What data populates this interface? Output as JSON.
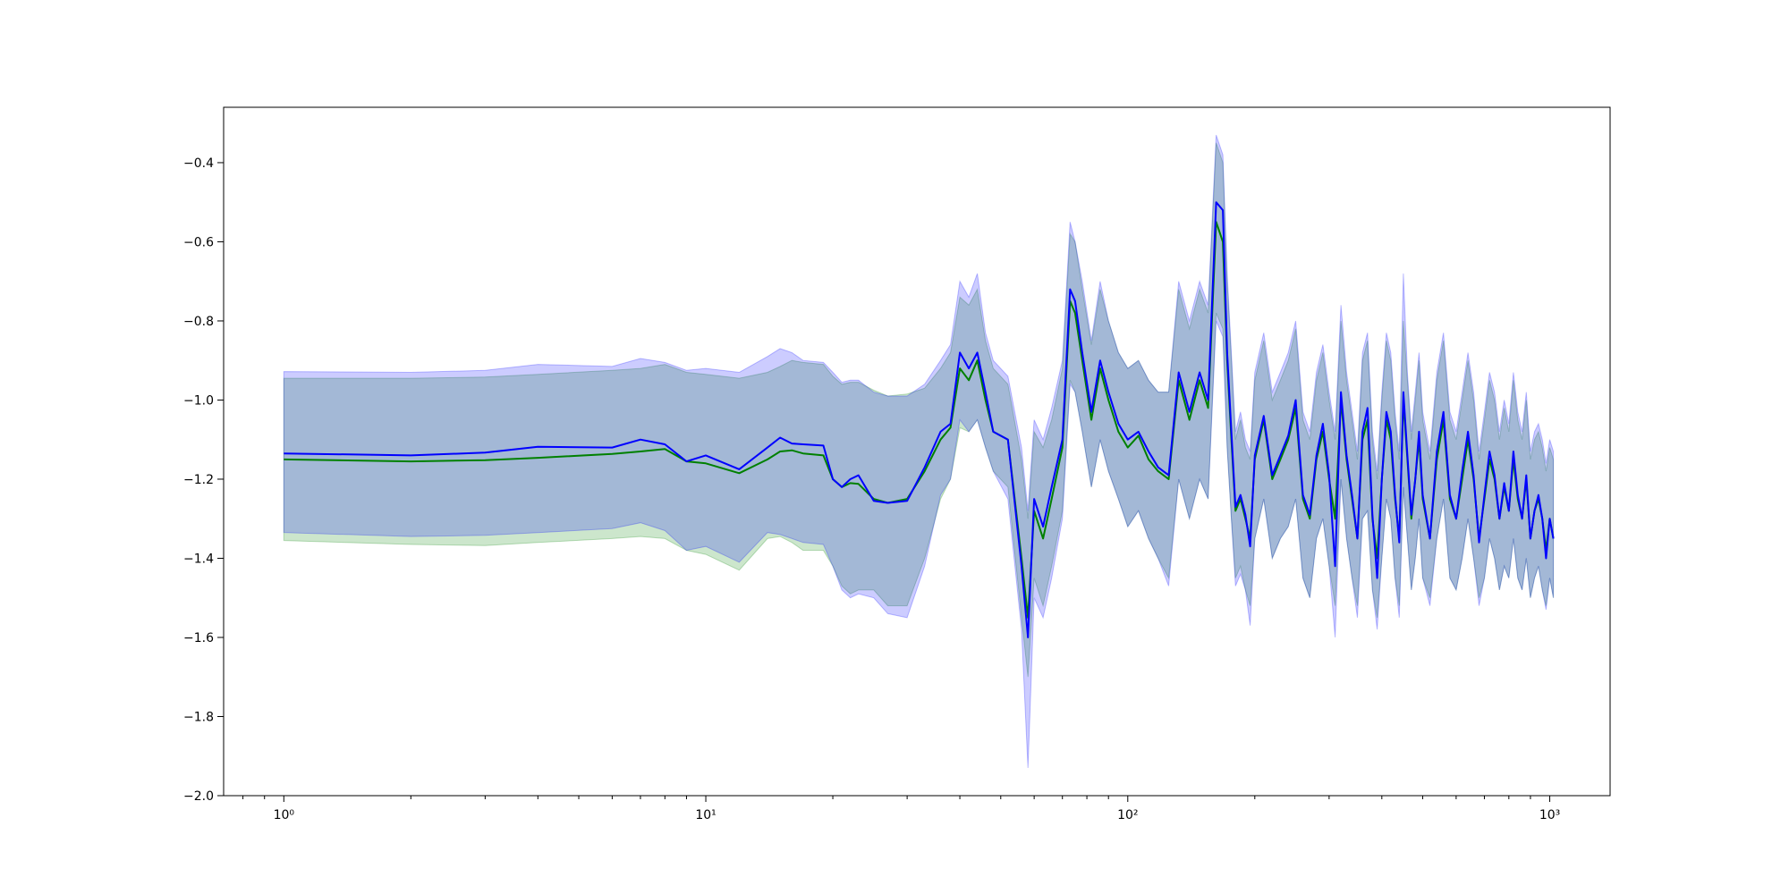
{
  "chart_data": {
    "type": "line",
    "title": "",
    "xlabel": "",
    "ylabel": "",
    "x_scale": "log",
    "xlim": [
      0.72,
      1390
    ],
    "ylim": [
      -2.0,
      -0.26
    ],
    "grid": false,
    "legend": "none",
    "x_ticks": [
      {
        "value": 1,
        "label": "10⁰"
      },
      {
        "value": 10,
        "label": "10¹"
      },
      {
        "value": 100,
        "label": "10²"
      },
      {
        "value": 1000,
        "label": "10³"
      }
    ],
    "y_ticks": [
      {
        "value": -0.4,
        "label": "−0.4"
      },
      {
        "value": -0.6,
        "label": "−0.6"
      },
      {
        "value": -0.8,
        "label": "−0.8"
      },
      {
        "value": -1.0,
        "label": "−1.0"
      },
      {
        "value": -1.2,
        "label": "−1.2"
      },
      {
        "value": -1.4,
        "label": "−1.4"
      },
      {
        "value": -1.6,
        "label": "−1.6"
      },
      {
        "value": -1.8,
        "label": "−1.8"
      },
      {
        "value": -2.0,
        "label": "−2.0"
      }
    ],
    "x": [
      1,
      2,
      3,
      4,
      6,
      7,
      8,
      9,
      10,
      12,
      14,
      15,
      16,
      17,
      19,
      20,
      21,
      22,
      23,
      25,
      27,
      30,
      33,
      36,
      38,
      40,
      42,
      44,
      46,
      48,
      52,
      56,
      58,
      60,
      63,
      66,
      70,
      73,
      75,
      78,
      82,
      86,
      90,
      95,
      100,
      106,
      112,
      118,
      125,
      132,
      140,
      148,
      155,
      162,
      168,
      172,
      176,
      180,
      185,
      190,
      195,
      200,
      210,
      220,
      230,
      240,
      250,
      260,
      270,
      280,
      290,
      300,
      310,
      320,
      330,
      340,
      350,
      360,
      370,
      380,
      390,
      400,
      410,
      420,
      430,
      440,
      450,
      460,
      470,
      480,
      490,
      500,
      520,
      540,
      560,
      580,
      600,
      620,
      640,
      660,
      680,
      700,
      720,
      740,
      760,
      780,
      800,
      820,
      840,
      860,
      880,
      900,
      920,
      940,
      960,
      980,
      1000,
      1020
    ],
    "series": [
      {
        "color": "#008000",
        "band_color": "#008000",
        "mean": [
          -1.15,
          -1.155,
          -1.152,
          -1.146,
          -1.136,
          -1.13,
          -1.124,
          -1.155,
          -1.16,
          -1.185,
          -1.15,
          -1.13,
          -1.127,
          -1.135,
          -1.14,
          -1.2,
          -1.22,
          -1.21,
          -1.212,
          -1.25,
          -1.26,
          -1.25,
          -1.18,
          -1.1,
          -1.07,
          -0.92,
          -0.95,
          -0.9,
          -1.0,
          -1.08,
          -1.1,
          -1.4,
          -1.55,
          -1.28,
          -1.35,
          -1.25,
          -1.12,
          -0.75,
          -0.78,
          -0.9,
          -1.05,
          -0.92,
          -1.0,
          -1.08,
          -1.12,
          -1.09,
          -1.15,
          -1.18,
          -1.2,
          -0.95,
          -1.05,
          -0.95,
          -1.02,
          -0.55,
          -0.6,
          -0.9,
          -1.1,
          -1.28,
          -1.25,
          -1.3,
          -1.35,
          -1.15,
          -1.05,
          -1.2,
          -1.15,
          -1.1,
          -1.02,
          -1.25,
          -1.3,
          -1.15,
          -1.08,
          -1.2,
          -1.3,
          -1.0,
          -1.15,
          -1.25,
          -1.35,
          -1.1,
          -1.05,
          -1.3,
          -1.4,
          -1.2,
          -1.05,
          -1.1,
          -1.25,
          -1.35,
          -1.0,
          -1.15,
          -1.3,
          -1.2,
          -1.1,
          -1.25,
          -1.35,
          -1.15,
          -1.05,
          -1.25,
          -1.3,
          -1.2,
          -1.1,
          -1.2,
          -1.35,
          -1.25,
          -1.15,
          -1.2,
          -1.3,
          -1.22,
          -1.28,
          -1.15,
          -1.25,
          -1.3,
          -1.2,
          -1.35,
          -1.28,
          -1.25,
          -1.3,
          -1.38,
          -1.3,
          -1.35
        ],
        "lower": [
          -1.355,
          -1.365,
          -1.368,
          -1.36,
          -1.35,
          -1.345,
          -1.35,
          -1.38,
          -1.39,
          -1.43,
          -1.35,
          -1.345,
          -1.36,
          -1.38,
          -1.38,
          -1.42,
          -1.47,
          -1.49,
          -1.48,
          -1.48,
          -1.52,
          -1.52,
          -1.4,
          -1.25,
          -1.2,
          -1.07,
          -1.08,
          -1.05,
          -1.12,
          -1.18,
          -1.22,
          -1.55,
          -1.7,
          -1.45,
          -1.52,
          -1.42,
          -1.28,
          -0.95,
          -0.98,
          -1.08,
          -1.22,
          -1.1,
          -1.18,
          -1.25,
          -1.32,
          -1.28,
          -1.35,
          -1.4,
          -1.45,
          -1.2,
          -1.3,
          -1.2,
          -1.25,
          -0.78,
          -0.82,
          -1.12,
          -1.3,
          -1.45,
          -1.42,
          -1.48,
          -1.52,
          -1.35,
          -1.25,
          -1.4,
          -1.35,
          -1.32,
          -1.25,
          -1.45,
          -1.5,
          -1.35,
          -1.3,
          -1.42,
          -1.52,
          -1.2,
          -1.35,
          -1.45,
          -1.52,
          -1.3,
          -1.28,
          -1.48,
          -1.55,
          -1.4,
          -1.25,
          -1.3,
          -1.45,
          -1.52,
          -1.22,
          -1.35,
          -1.48,
          -1.4,
          -1.3,
          -1.45,
          -1.5,
          -1.35,
          -1.25,
          -1.45,
          -1.48,
          -1.4,
          -1.3,
          -1.4,
          -1.5,
          -1.45,
          -1.35,
          -1.4,
          -1.48,
          -1.42,
          -1.45,
          -1.35,
          -1.45,
          -1.48,
          -1.4,
          -1.5,
          -1.45,
          -1.42,
          -1.48,
          -1.52,
          -1.45,
          -1.5
        ],
        "upper": [
          -0.945,
          -0.945,
          -0.942,
          -0.935,
          -0.925,
          -0.92,
          -0.91,
          -0.93,
          -0.935,
          -0.945,
          -0.93,
          -0.915,
          -0.9,
          -0.905,
          -0.91,
          -0.94,
          -0.96,
          -0.955,
          -0.955,
          -0.975,
          -0.99,
          -0.985,
          -0.97,
          -0.92,
          -0.88,
          -0.74,
          -0.76,
          -0.72,
          -0.85,
          -0.92,
          -0.96,
          -1.15,
          -1.3,
          -1.08,
          -1.12,
          -1.05,
          -0.92,
          -0.58,
          -0.6,
          -0.72,
          -0.86,
          -0.72,
          -0.8,
          -0.88,
          -0.92,
          -0.9,
          -0.95,
          -0.98,
          -0.98,
          -0.72,
          -0.82,
          -0.72,
          -0.78,
          -0.35,
          -0.4,
          -0.7,
          -0.9,
          -1.1,
          -1.05,
          -1.12,
          -1.15,
          -0.95,
          -0.85,
          -1.0,
          -0.95,
          -0.9,
          -0.82,
          -1.05,
          -1.1,
          -0.95,
          -0.88,
          -1.0,
          -1.1,
          -0.8,
          -0.95,
          -1.05,
          -1.15,
          -0.9,
          -0.85,
          -1.1,
          -1.2,
          -1.0,
          -0.85,
          -0.9,
          -1.05,
          -1.15,
          -0.8,
          -0.95,
          -1.1,
          -1.0,
          -0.9,
          -1.05,
          -1.15,
          -0.95,
          -0.85,
          -1.05,
          -1.1,
          -1.0,
          -0.9,
          -1.0,
          -1.15,
          -1.05,
          -0.95,
          -1.0,
          -1.1,
          -1.02,
          -1.08,
          -0.95,
          -1.05,
          -1.1,
          -1.0,
          -1.15,
          -1.1,
          -1.08,
          -1.12,
          -1.18,
          -1.12,
          -1.15
        ]
      },
      {
        "color": "#0000ff",
        "band_color": "#0000ff",
        "mean": [
          -1.135,
          -1.14,
          -1.133,
          -1.118,
          -1.12,
          -1.1,
          -1.112,
          -1.155,
          -1.14,
          -1.175,
          -1.12,
          -1.095,
          -1.11,
          -1.112,
          -1.115,
          -1.2,
          -1.22,
          -1.2,
          -1.19,
          -1.255,
          -1.26,
          -1.255,
          -1.17,
          -1.08,
          -1.06,
          -0.88,
          -0.92,
          -0.88,
          -0.98,
          -1.08,
          -1.1,
          -1.42,
          -1.6,
          -1.25,
          -1.32,
          -1.22,
          -1.1,
          -0.72,
          -0.75,
          -0.88,
          -1.03,
          -0.9,
          -0.98,
          -1.06,
          -1.1,
          -1.08,
          -1.13,
          -1.17,
          -1.19,
          -0.93,
          -1.03,
          -0.93,
          -1.0,
          -0.5,
          -0.52,
          -0.88,
          -1.08,
          -1.27,
          -1.24,
          -1.29,
          -1.37,
          -1.14,
          -1.04,
          -1.19,
          -1.14,
          -1.09,
          -1.0,
          -1.24,
          -1.29,
          -1.14,
          -1.06,
          -1.19,
          -1.42,
          -0.98,
          -1.14,
          -1.24,
          -1.35,
          -1.08,
          -1.02,
          -1.29,
          -1.45,
          -1.2,
          -1.03,
          -1.08,
          -1.24,
          -1.36,
          -0.98,
          -1.14,
          -1.29,
          -1.2,
          -1.08,
          -1.24,
          -1.35,
          -1.13,
          -1.03,
          -1.24,
          -1.3,
          -1.18,
          -1.08,
          -1.19,
          -1.36,
          -1.24,
          -1.13,
          -1.19,
          -1.3,
          -1.21,
          -1.28,
          -1.13,
          -1.24,
          -1.3,
          -1.19,
          -1.35,
          -1.28,
          -1.24,
          -1.3,
          -1.4,
          -1.3,
          -1.35
        ],
        "lower": [
          -1.335,
          -1.345,
          -1.342,
          -1.335,
          -1.325,
          -1.31,
          -1.33,
          -1.38,
          -1.37,
          -1.41,
          -1.335,
          -1.34,
          -1.35,
          -1.36,
          -1.365,
          -1.42,
          -1.48,
          -1.5,
          -1.49,
          -1.5,
          -1.54,
          -1.55,
          -1.42,
          -1.24,
          -1.2,
          -1.05,
          -1.08,
          -1.05,
          -1.12,
          -1.18,
          -1.25,
          -1.58,
          -1.93,
          -1.5,
          -1.55,
          -1.45,
          -1.3,
          -0.96,
          -0.98,
          -1.08,
          -1.22,
          -1.1,
          -1.18,
          -1.25,
          -1.32,
          -1.28,
          -1.35,
          -1.4,
          -1.47,
          -1.2,
          -1.3,
          -1.2,
          -1.25,
          -0.8,
          -0.84,
          -1.12,
          -1.3,
          -1.47,
          -1.44,
          -1.48,
          -1.57,
          -1.35,
          -1.25,
          -1.4,
          -1.35,
          -1.32,
          -1.25,
          -1.45,
          -1.5,
          -1.35,
          -1.3,
          -1.42,
          -1.6,
          -1.2,
          -1.35,
          -1.45,
          -1.55,
          -1.3,
          -1.28,
          -1.48,
          -1.58,
          -1.4,
          -1.25,
          -1.3,
          -1.45,
          -1.55,
          -1.22,
          -1.35,
          -1.48,
          -1.4,
          -1.3,
          -1.45,
          -1.52,
          -1.35,
          -1.25,
          -1.45,
          -1.48,
          -1.4,
          -1.3,
          -1.4,
          -1.52,
          -1.45,
          -1.35,
          -1.4,
          -1.48,
          -1.42,
          -1.45,
          -1.35,
          -1.45,
          -1.48,
          -1.4,
          -1.5,
          -1.45,
          -1.42,
          -1.48,
          -1.53,
          -1.45,
          -1.5
        ],
        "upper": [
          -0.928,
          -0.93,
          -0.925,
          -0.91,
          -0.915,
          -0.895,
          -0.905,
          -0.925,
          -0.92,
          -0.93,
          -0.89,
          -0.87,
          -0.88,
          -0.9,
          -0.905,
          -0.93,
          -0.955,
          -0.95,
          -0.95,
          -0.98,
          -0.99,
          -0.99,
          -0.96,
          -0.9,
          -0.86,
          -0.7,
          -0.74,
          -0.68,
          -0.83,
          -0.9,
          -0.94,
          -1.12,
          -1.28,
          -1.05,
          -1.1,
          -1.02,
          -0.9,
          -0.55,
          -0.6,
          -0.7,
          -0.85,
          -0.7,
          -0.8,
          -0.88,
          -0.92,
          -0.9,
          -0.95,
          -0.98,
          -0.98,
          -0.7,
          -0.8,
          -0.7,
          -0.76,
          -0.33,
          -0.38,
          -0.68,
          -0.88,
          -1.08,
          -1.03,
          -1.1,
          -1.13,
          -0.93,
          -0.83,
          -0.98,
          -0.93,
          -0.88,
          -0.8,
          -1.03,
          -1.08,
          -0.93,
          -0.86,
          -0.98,
          -1.08,
          -0.76,
          -0.93,
          -1.03,
          -1.13,
          -0.88,
          -0.83,
          -1.08,
          -1.18,
          -0.98,
          -0.83,
          -0.88,
          -1.03,
          -1.13,
          -0.68,
          -0.93,
          -1.08,
          -0.98,
          -0.88,
          -1.03,
          -1.13,
          -0.93,
          -0.83,
          -1.03,
          -1.08,
          -0.98,
          -0.88,
          -0.98,
          -1.13,
          -1.03,
          -0.93,
          -0.98,
          -1.08,
          -1.0,
          -1.06,
          -0.93,
          -1.03,
          -1.08,
          -0.98,
          -1.13,
          -1.08,
          -1.06,
          -1.1,
          -1.16,
          -1.1,
          -1.13
        ]
      }
    ]
  }
}
